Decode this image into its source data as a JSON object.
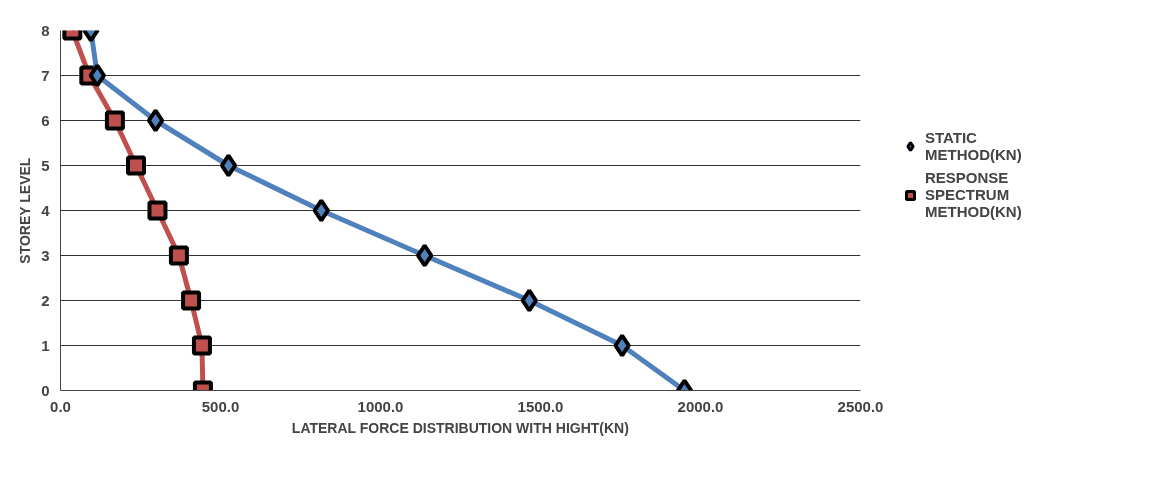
{
  "chart_data": {
    "type": "line",
    "xlabel": "LATERAL FORCE DISTRIBUTION WITH HIGHT(KN)",
    "ylabel": "STOREY LEVEL",
    "xlim": [
      0,
      2500
    ],
    "xticks": [
      {
        "value": 0,
        "label": "0.0"
      },
      {
        "value": 500,
        "label": "500.0"
      },
      {
        "value": 1000,
        "label": "1000.0"
      },
      {
        "value": 1500,
        "label": "1500.0"
      },
      {
        "value": 2000,
        "label": "2000.0"
      },
      {
        "value": 2500,
        "label": "2500.0"
      }
    ],
    "ylim": [
      0,
      8
    ],
    "yticks": [
      0,
      1,
      2,
      3,
      4,
      5,
      6,
      7,
      8
    ],
    "grid": "y",
    "legend": "right",
    "series": [
      {
        "name": "STATIC METHOD(KN)",
        "color": "#4f81bd",
        "marker": "diamond",
        "x": [
          1950,
          1755,
          1465,
          1138,
          815,
          525,
          297,
          115,
          95
        ],
        "values": [
          0,
          1,
          2,
          3,
          4,
          5,
          6,
          7,
          8
        ]
      },
      {
        "name": "RESPONSE SPECTRUM METHOD(KN)",
        "color": "#c0504d",
        "marker": "square",
        "x": [
          445,
          442,
          408,
          370,
          303,
          236,
          170,
          90,
          37
        ],
        "values": [
          0,
          1,
          2,
          3,
          4,
          5,
          6,
          7,
          8
        ]
      }
    ]
  }
}
